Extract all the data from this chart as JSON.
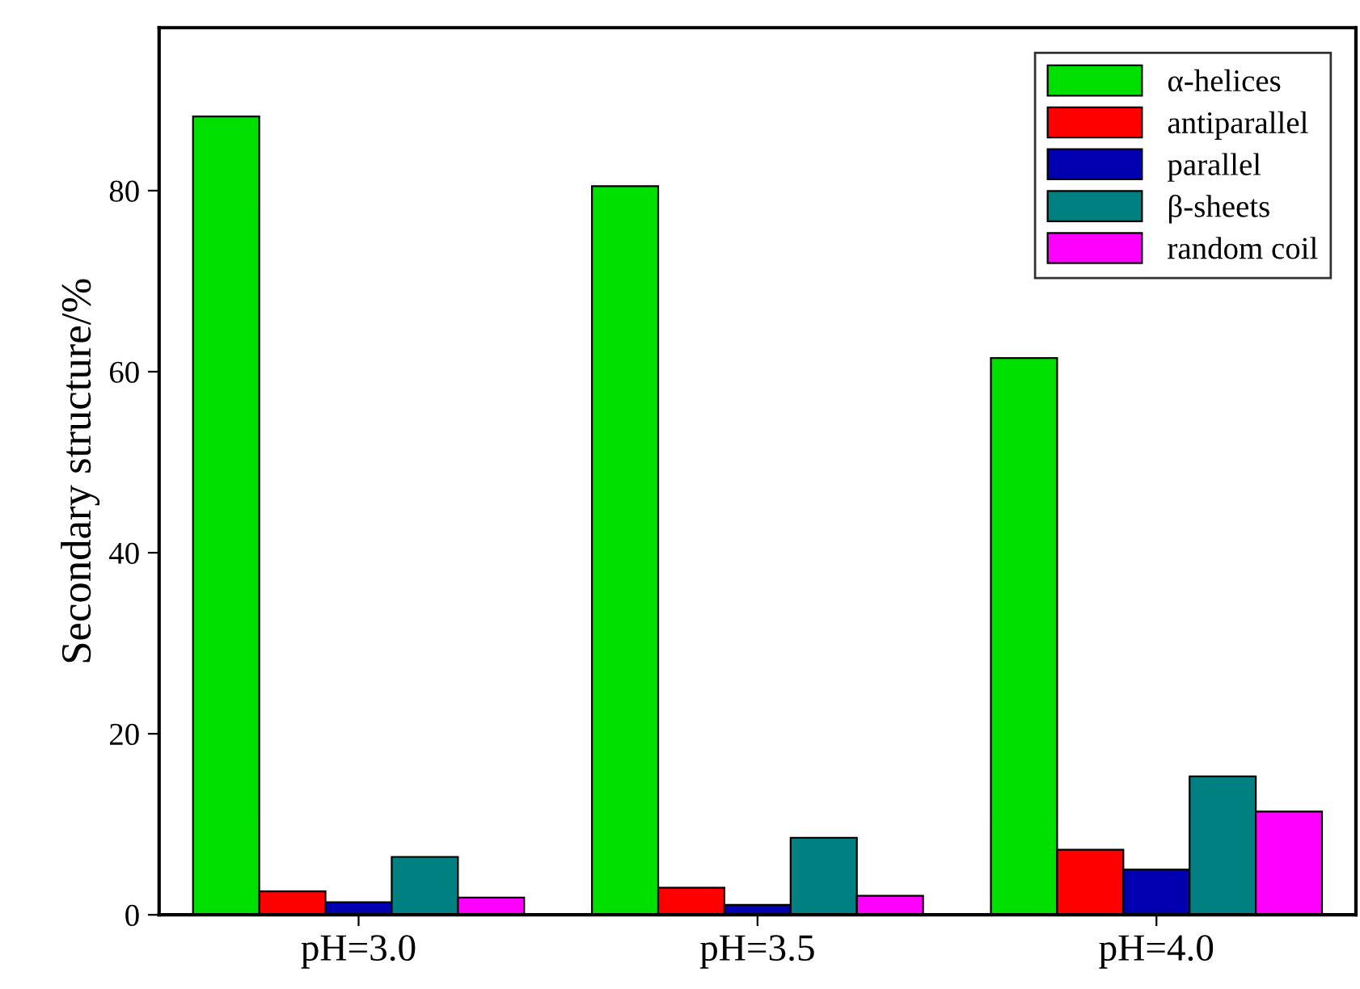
{
  "chart_data": {
    "type": "bar",
    "ylabel": "Secondary structure/%",
    "categories": [
      "pH=3.0",
      "pH=3.5",
      "pH=4.0"
    ],
    "series": [
      {
        "name": "α-helices",
        "color": "#00e000",
        "values": [
          88.2,
          80.5,
          61.5
        ]
      },
      {
        "name": "antiparallel",
        "color": "#ff0000",
        "values": [
          2.6,
          3.0,
          7.2
        ]
      },
      {
        "name": "parallel",
        "color": "#0000b0",
        "values": [
          1.4,
          1.1,
          5.0
        ]
      },
      {
        "name": "β-sheets",
        "color": "#008080",
        "values": [
          6.4,
          8.5,
          15.3
        ]
      },
      {
        "name": "random coil",
        "color": "#ff00ff",
        "values": [
          1.9,
          2.1,
          11.4
        ]
      }
    ],
    "ylim": [
      0,
      98
    ],
    "yticks": [
      0,
      20,
      40,
      60,
      80
    ],
    "grid": false,
    "legend": "top right"
  }
}
